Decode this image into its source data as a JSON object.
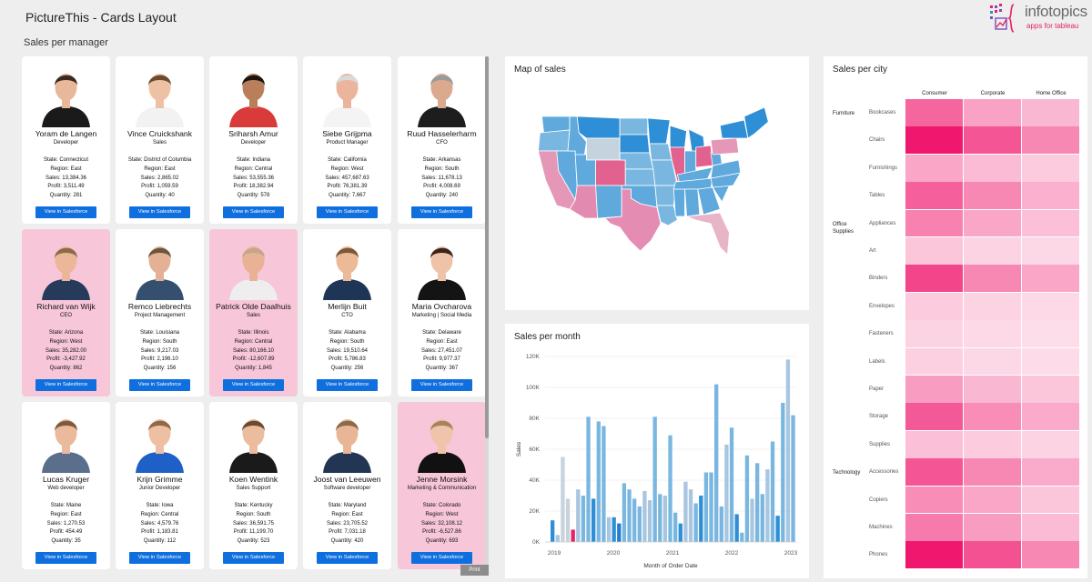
{
  "app": {
    "title": "PictureThis - Cards Layout"
  },
  "brand": {
    "name": "infotopics",
    "tagline": "apps for tableau"
  },
  "sales_section": {
    "label": "Sales per manager",
    "button_label": "View in Salesforce"
  },
  "cards": [
    {
      "name": "Yoram de Langen",
      "role": "Developer",
      "state": "State: Connecticut",
      "region": "Region: East",
      "sales": "Sales: 13,384.36",
      "profit": "Profit: 3,511.49",
      "quantity": "Quantity: 281",
      "highlight": false,
      "shirt": "#1a1a1a",
      "skin": "#e9b89a",
      "hair": "#3a2a1f"
    },
    {
      "name": "Vince Cruickshank",
      "role": "Sales",
      "state": "State: District of Columbia",
      "region": "Region: East",
      "sales": "Sales: 2,865.02",
      "profit": "Profit: 1,059.59",
      "quantity": "Quantity: 40",
      "highlight": false,
      "shirt": "#f2f2f2",
      "skin": "#eec0a4",
      "hair": "#6b4a2e"
    },
    {
      "name": "Sriharsh Amur",
      "role": "Developer",
      "state": "State: Indiana",
      "region": "Region: Central",
      "sales": "Sales: 53,555.36",
      "profit": "Profit: 18,382.94",
      "quantity": "Quantity: 578",
      "highlight": false,
      "shirt": "#d93a3a",
      "skin": "#b97f5a",
      "hair": "#1b1410"
    },
    {
      "name": "Siebe Grijpma",
      "role": "Product Manager",
      "state": "State: California",
      "region": "Region: West",
      "sales": "Sales: 457,687.63",
      "profit": "Profit: 76,381.39",
      "quantity": "Quantity: 7,667",
      "highlight": false,
      "shirt": "#f4f4f4",
      "skin": "#eab59c",
      "hair": "#d9d9d9"
    },
    {
      "name": "Ruud Hasselerharm",
      "role": "CFO",
      "state": "State: Arkansas",
      "region": "Region: South",
      "sales": "Sales: 11,678.13",
      "profit": "Profit: 4,008.69",
      "quantity": "Quantity: 240",
      "highlight": false,
      "shirt": "#1d1d1d",
      "skin": "#dba98e",
      "hair": "#9a9a9a"
    },
    {
      "name": "Richard van Wijk",
      "role": "CEO",
      "state": "State: Arizona",
      "region": "Region: West",
      "sales": "Sales: 35,282.00",
      "profit": "Profit: -3,427.92",
      "quantity": "Quantity: 862",
      "highlight": true,
      "shirt": "#263a5c",
      "skin": "#ebb798",
      "hair": "#8c6a4a"
    },
    {
      "name": "Remco Liebrechts",
      "role": "Project Management",
      "state": "State: Louisiana",
      "region": "Region: South",
      "sales": "Sales: 9,217.03",
      "profit": "Profit: 2,196.10",
      "quantity": "Quantity: 156",
      "highlight": false,
      "shirt": "#34506e",
      "skin": "#e4b196",
      "hair": "#6b563e"
    },
    {
      "name": "Patrick Olde Daalhuis",
      "role": "Sales",
      "state": "State: Illinois",
      "region": "Region: Central",
      "sales": "Sales: 80,166.10",
      "profit": "Profit: -12,607.89",
      "quantity": "Quantity: 1,845",
      "highlight": true,
      "shirt": "#eeeeee",
      "skin": "#e9b295",
      "hair": "#c7a58a"
    },
    {
      "name": "Merlijn Buit",
      "role": "CTO",
      "state": "State: Alabama",
      "region": "Region: South",
      "sales": "Sales: 19,510.64",
      "profit": "Profit: 5,786.83",
      "quantity": "Quantity: 256",
      "highlight": false,
      "shirt": "#1f3555",
      "skin": "#ecb999",
      "hair": "#7a5a3a"
    },
    {
      "name": "Maria Ovcharova",
      "role": "Marketing | Social Media",
      "state": "State: Delaware",
      "region": "Region: East",
      "sales": "Sales: 27,451.07",
      "profit": "Profit: 9,977.37",
      "quantity": "Quantity: 367",
      "highlight": false,
      "shirt": "#141414",
      "skin": "#efc3a8",
      "hair": "#3b2418"
    },
    {
      "name": "Lucas Kruger",
      "role": "Web developer",
      "state": "State: Maine",
      "region": "Region: East",
      "sales": "Sales: 1,270.53",
      "profit": "Profit: 454.49",
      "quantity": "Quantity: 35",
      "highlight": false,
      "shirt": "#5b6f8c",
      "skin": "#ebb99c",
      "hair": "#7b5b3b"
    },
    {
      "name": "Krijn Grimme",
      "role": "Junior Developer",
      "state": "State: Iowa",
      "region": "Region: Central",
      "sales": "Sales: 4,579.76",
      "profit": "Profit: 1,183.81",
      "quantity": "Quantity: 112",
      "highlight": false,
      "shirt": "#1e5fc8",
      "skin": "#efbfa3",
      "hair": "#8b6a45"
    },
    {
      "name": "Koen Wentink",
      "role": "Sales Support",
      "state": "State: Kentucky",
      "region": "Region: South",
      "sales": "Sales: 36,591.75",
      "profit": "Profit: 11,199.70",
      "quantity": "Quantity: 523",
      "highlight": false,
      "shirt": "#1a1a1a",
      "skin": "#ecbc9f",
      "hair": "#6b4a2e"
    },
    {
      "name": "Joost van Leeuwen",
      "role": "Software developer",
      "state": "State: Maryland",
      "region": "Region: East",
      "sales": "Sales: 23,705.52",
      "profit": "Profit: 7,031.18",
      "quantity": "Quantity: 420",
      "highlight": false,
      "shirt": "#223552",
      "skin": "#e9b597",
      "hair": "#8a6a4a"
    },
    {
      "name": "Jenne Morsink",
      "role": "Marketing & Communication",
      "state": "State: Colorado",
      "region": "Region: West",
      "sales": "Sales: 32,108.12",
      "profit": "Profit: -6,527.86",
      "quantity": "Quantity: 693",
      "highlight": true,
      "shirt": "#111111",
      "skin": "#f0c4aa",
      "hair": "#a8845c"
    }
  ],
  "print_label": "Print",
  "map_panel": {
    "title": "Map of sales"
  },
  "month_panel": {
    "title": "Sales per month"
  },
  "city_panel": {
    "title": "Sales per city"
  },
  "chart_data": [
    {
      "type": "bar",
      "title": "Sales per month",
      "xlabel": "Month of Order Date",
      "ylabel": "Sales",
      "ylim": [
        0,
        120000
      ],
      "yticks": [
        "0K",
        "20K",
        "40K",
        "60K",
        "80K",
        "100K",
        "120K"
      ],
      "xticks": [
        "2019",
        "2020",
        "2021",
        "2022",
        "2023"
      ],
      "x": [
        "2019-01",
        "2019-02",
        "2019-03",
        "2019-04",
        "2019-05",
        "2019-06",
        "2019-07",
        "2019-08",
        "2019-09",
        "2019-10",
        "2019-11",
        "2019-12",
        "2020-01",
        "2020-02",
        "2020-03",
        "2020-04",
        "2020-05",
        "2020-06",
        "2020-07",
        "2020-08",
        "2020-09",
        "2020-10",
        "2020-11",
        "2020-12",
        "2021-01",
        "2021-02",
        "2021-03",
        "2021-04",
        "2021-05",
        "2021-06",
        "2021-07",
        "2021-08",
        "2021-09",
        "2021-10",
        "2021-11",
        "2021-12",
        "2022-01",
        "2022-02",
        "2022-03",
        "2022-04",
        "2022-05",
        "2022-06",
        "2022-07",
        "2022-08",
        "2022-09",
        "2022-10",
        "2022-11",
        "2022-12"
      ],
      "values": [
        14000,
        4500,
        55000,
        28000,
        8000,
        34000,
        30000,
        81000,
        28000,
        78000,
        75000,
        16000,
        16000,
        12000,
        38000,
        34000,
        28000,
        23000,
        33000,
        27000,
        81000,
        31000,
        30000,
        69000,
        19000,
        12000,
        39000,
        34000,
        25000,
        30000,
        45000,
        45000,
        102000,
        23000,
        63000,
        74000,
        18000,
        6000,
        56000,
        28000,
        51000,
        31000,
        47000,
        65000,
        17000,
        90000,
        118000,
        82000
      ],
      "colors": [
        "#2f8fd6",
        "#a8c6e0",
        "#c9d3dc",
        "#c9d3dc",
        "#e2236b",
        "#a8c6e0",
        "#7ab7e0",
        "#7ab7e0",
        "#2f8fd6",
        "#7ab7e0",
        "#7ab7e0",
        "#a8c6e0",
        "#2f8fd6",
        "#1f7fcf",
        "#7ab7e0",
        "#7ab7e0",
        "#7ab7e0",
        "#7ab7e0",
        "#a8c6e0",
        "#a8c6e0",
        "#7ab7e0",
        "#7ab7e0",
        "#a8c6e0",
        "#7ab7e0",
        "#7ab7e0",
        "#2f8fd6",
        "#a8c6e0",
        "#a8c6e0",
        "#7ab7e0",
        "#2f8fd6",
        "#7ab7e0",
        "#7ab7e0",
        "#7ab7e0",
        "#7ab7e0",
        "#a8c6e0",
        "#7ab7e0",
        "#2f8fd6",
        "#7ab7e0",
        "#7ab7e0",
        "#a8c6e0",
        "#7ab7e0",
        "#7ab7e0",
        "#a8c6e0",
        "#7ab7e0",
        "#2f8fd6",
        "#7ab7e0",
        "#a8c6e0",
        "#7ab7e0"
      ],
      "grid": true
    },
    {
      "type": "heatmap",
      "title": "Sales per city",
      "columns": [
        "Consumer",
        "Corporate",
        "Home Office"
      ],
      "groups": [
        {
          "category": "Furniture",
          "subs": [
            "Bookcases",
            "Chairs",
            "Furnishings",
            "Tables"
          ]
        },
        {
          "category": "Office Supplies",
          "subs": [
            "Appliances",
            "Art",
            "Binders",
            "Envelopes",
            "Fasteners",
            "Labels",
            "Paper",
            "Storage",
            "Supplies"
          ]
        },
        {
          "category": "Technology",
          "subs": [
            "Accessories",
            "Copiers",
            "Machines",
            "Phones"
          ]
        }
      ],
      "rows": [
        "Bookcases",
        "Chairs",
        "Furnishings",
        "Tables",
        "Appliances",
        "Art",
        "Binders",
        "Envelopes",
        "Fasteners",
        "Labels",
        "Paper",
        "Storage",
        "Supplies",
        "Accessories",
        "Copiers",
        "Machines",
        "Phones"
      ],
      "intensity": [
        [
          0.62,
          0.32,
          0.22
        ],
        [
          1.0,
          0.7,
          0.45
        ],
        [
          0.3,
          0.2,
          0.12
        ],
        [
          0.65,
          0.45,
          0.25
        ],
        [
          0.48,
          0.3,
          0.18
        ],
        [
          0.15,
          0.08,
          0.06
        ],
        [
          0.78,
          0.45,
          0.3
        ],
        [
          0.12,
          0.08,
          0.05
        ],
        [
          0.08,
          0.05,
          0.03
        ],
        [
          0.1,
          0.06,
          0.04
        ],
        [
          0.35,
          0.22,
          0.15
        ],
        [
          0.68,
          0.42,
          0.28
        ],
        [
          0.18,
          0.12,
          0.08
        ],
        [
          0.7,
          0.45,
          0.28
        ],
        [
          0.42,
          0.3,
          0.15
        ],
        [
          0.52,
          0.35,
          0.2
        ],
        [
          1.0,
          0.72,
          0.45
        ]
      ],
      "legend": "none"
    }
  ],
  "map_states": [
    {
      "shape": "wa",
      "color": "#5fa9dc"
    },
    {
      "shape": "or",
      "color": "#7ab7e0"
    },
    {
      "shape": "ca",
      "color": "#e597b8"
    },
    {
      "shape": "nv",
      "color": "#5fa9dc"
    },
    {
      "shape": "id",
      "color": "#5fa9dc"
    },
    {
      "shape": "mt",
      "color": "#2f8fd6"
    },
    {
      "shape": "wy",
      "color": "#c5d3df"
    },
    {
      "shape": "ut",
      "color": "#5fa9dc"
    },
    {
      "shape": "az",
      "color": "#e38ab1"
    },
    {
      "shape": "co",
      "color": "#e2628f"
    },
    {
      "shape": "nm",
      "color": "#5fa9dc"
    },
    {
      "shape": "nd",
      "color": "#7ab7e0"
    },
    {
      "shape": "sd",
      "color": "#2f8fd6"
    },
    {
      "shape": "ne",
      "color": "#7ab7e0"
    },
    {
      "shape": "ks",
      "color": "#7ab7e0"
    },
    {
      "shape": "ok",
      "color": "#5fa9dc"
    },
    {
      "shape": "tx",
      "color": "#e58cb2"
    },
    {
      "shape": "mn",
      "color": "#2f8fd6"
    },
    {
      "shape": "ia",
      "color": "#7ab7e0"
    },
    {
      "shape": "mo",
      "color": "#7ab7e0"
    },
    {
      "shape": "ar",
      "color": "#7ab7e0"
    },
    {
      "shape": "la",
      "color": "#7ab7e0"
    },
    {
      "shape": "wi",
      "color": "#2f8fd6"
    },
    {
      "shape": "il",
      "color": "#e2628f"
    },
    {
      "shape": "ms",
      "color": "#5fa9dc"
    },
    {
      "shape": "mi",
      "color": "#2f8fd6"
    },
    {
      "shape": "in",
      "color": "#5fa9dc"
    },
    {
      "shape": "oh",
      "color": "#e2628f"
    },
    {
      "shape": "ky",
      "color": "#5fa9dc"
    },
    {
      "shape": "tn",
      "color": "#5fa9dc"
    },
    {
      "shape": "al",
      "color": "#5fa9dc"
    },
    {
      "shape": "ga",
      "color": "#5fa9dc"
    },
    {
      "shape": "fl",
      "color": "#e7b4c8"
    },
    {
      "shape": "sc",
      "color": "#5fa9dc"
    },
    {
      "shape": "nc",
      "color": "#5fa9dc"
    },
    {
      "shape": "va",
      "color": "#5fa9dc"
    },
    {
      "shape": "wv",
      "color": "#5fa9dc"
    },
    {
      "shape": "pa",
      "color": "#e597b8"
    },
    {
      "shape": "ny",
      "color": "#2f8fd6"
    },
    {
      "shape": "ne_us",
      "color": "#2f8fd6"
    }
  ]
}
